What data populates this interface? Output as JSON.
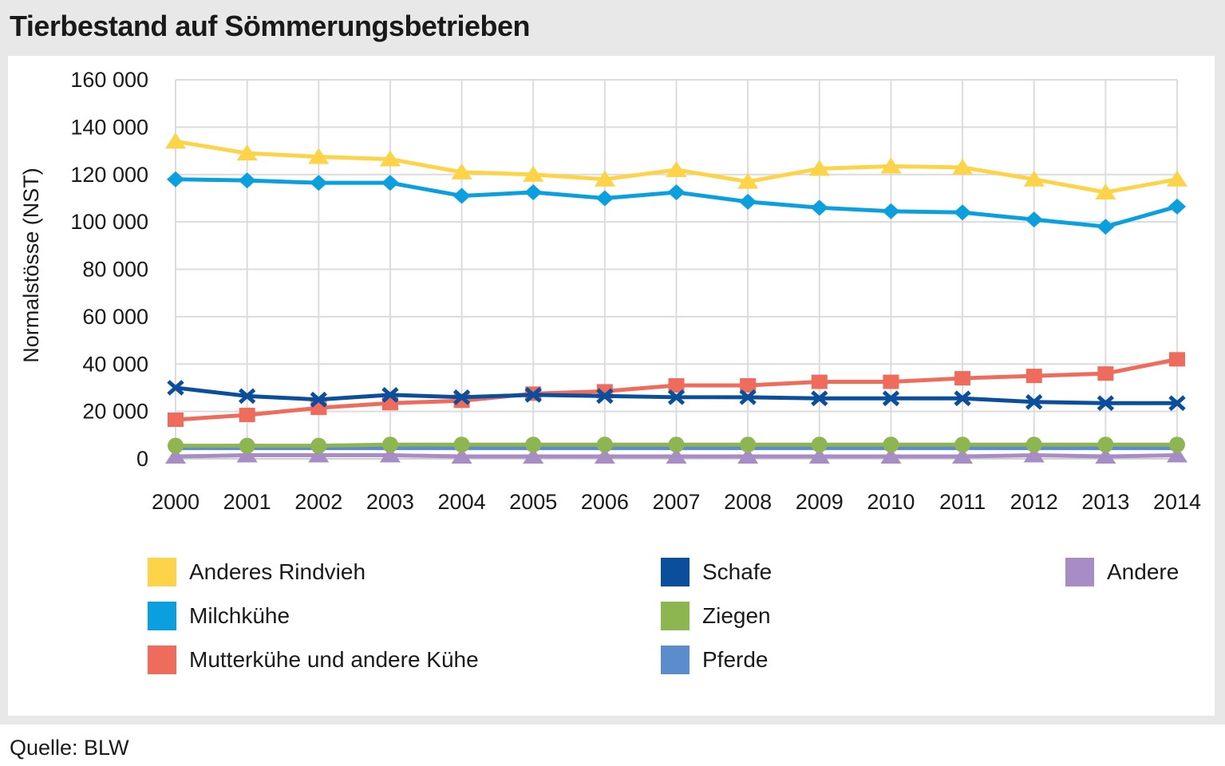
{
  "title": "Tierbestand auf Sömmerungsbetrieben",
  "source": "Quelle: BLW",
  "chart_data": {
    "type": "line",
    "title": "Tierbestand auf Sömmerungsbetrieben",
    "xlabel": "",
    "ylabel": "Normalstösse (NST)",
    "ylim": [
      0,
      160000
    ],
    "yticks": [
      0,
      20000,
      40000,
      60000,
      80000,
      100000,
      120000,
      140000,
      160000
    ],
    "ytick_labels": [
      "0",
      "20 000",
      "40 000",
      "60 000",
      "80 000",
      "100 000",
      "120 000",
      "140 000",
      "160 000"
    ],
    "grid": true,
    "legend_position": "bottom",
    "categories": [
      "2000",
      "2001",
      "2002",
      "2003",
      "2004",
      "2005",
      "2006",
      "2007",
      "2008",
      "2009",
      "2010",
      "2011",
      "2012",
      "2013",
      "2014"
    ],
    "series": [
      {
        "name": "Anderes Rindvieh",
        "color": "#fdd347",
        "marker": "triangle",
        "values": [
          134000,
          129000,
          127500,
          126500,
          121000,
          120000,
          118000,
          122000,
          117000,
          122500,
          123500,
          123000,
          118000,
          112500,
          118000
        ]
      },
      {
        "name": "Milchkühe",
        "color": "#0aa0e0",
        "marker": "diamond",
        "values": [
          118000,
          117500,
          116500,
          116500,
          111000,
          112500,
          110000,
          112500,
          108500,
          106000,
          104500,
          104000,
          101000,
          98000,
          106500
        ]
      },
      {
        "name": "Mutterkühe und andere Kühe",
        "color": "#ef6b5c",
        "marker": "square",
        "values": [
          16500,
          18500,
          21500,
          23500,
          24500,
          27500,
          28500,
          31000,
          31000,
          32500,
          32500,
          34000,
          35000,
          36000,
          42000
        ]
      },
      {
        "name": "Schafe",
        "color": "#0b4f9c",
        "marker": "x",
        "values": [
          30000,
          26500,
          25000,
          27000,
          26000,
          27000,
          26500,
          26000,
          26000,
          25500,
          25500,
          25500,
          24000,
          23500,
          23500
        ]
      },
      {
        "name": "Ziegen",
        "color": "#8db650",
        "marker": "circle",
        "values": [
          5500,
          5500,
          5500,
          6000,
          6000,
          6000,
          6000,
          6000,
          6000,
          6000,
          6000,
          6000,
          6000,
          6000,
          6000
        ]
      },
      {
        "name": "Pferde",
        "color": "#5b8ccc",
        "marker": "none",
        "values": [
          4500,
          4500,
          4500,
          4500,
          4500,
          4500,
          4500,
          4500,
          4500,
          4500,
          4500,
          4500,
          4500,
          4500,
          4500
        ]
      },
      {
        "name": "Andere",
        "color": "#a78cc5",
        "marker": "triangle",
        "values": [
          1000,
          1500,
          1500,
          1500,
          1000,
          1000,
          1000,
          1000,
          1000,
          1000,
          1000,
          1000,
          1500,
          1000,
          1500
        ]
      }
    ]
  }
}
